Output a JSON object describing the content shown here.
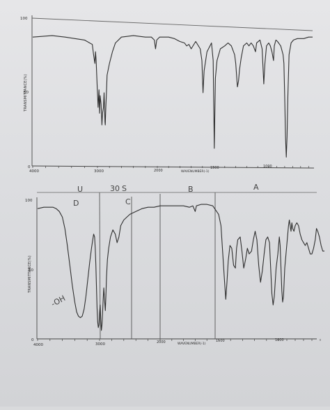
{
  "chart_data": [
    {
      "type": "line",
      "title": "",
      "xlabel": "WAVENUMBER(-1)",
      "ylabel": "TRANSMITTANCE(%)",
      "x_reversed": true,
      "xlim": [
        4000,
        450
      ],
      "ylim": [
        0,
        100
      ],
      "x_ticks": [
        "4000",
        "3000",
        "2000",
        "1500",
        "1000"
      ],
      "y_ticks": [
        "0",
        "50",
        "100"
      ],
      "series": [
        {
          "name": "",
          "points": [
            [
              4000,
              88
            ],
            [
              3700,
              89
            ],
            [
              3500,
              88
            ],
            [
              3200,
              86
            ],
            [
              3120,
              84
            ],
            [
              3080,
              83
            ],
            [
              3060,
              76
            ],
            [
              3040,
              70
            ],
            [
              3030,
              78
            ],
            [
              3020,
              72
            ],
            [
              3010,
              60
            ],
            [
              2990,
              40
            ],
            [
              2975,
              52
            ],
            [
              2965,
              36
            ],
            [
              2955,
              48
            ],
            [
              2940,
              42
            ],
            [
              2925,
              28
            ],
            [
              2915,
              36
            ],
            [
              2900,
              40
            ],
            [
              2890,
              50
            ],
            [
              2875,
              30
            ],
            [
              2870,
              28
            ],
            [
              2860,
              40
            ],
            [
              2850,
              50
            ],
            [
              2840,
              62
            ],
            [
              2800,
              70
            ],
            [
              2750,
              78
            ],
            [
              2700,
              84
            ],
            [
              2600,
              88
            ],
            [
              2400,
              89
            ],
            [
              2200,
              88
            ],
            [
              2100,
              88
            ],
            [
              2050,
              86
            ],
            [
              2030,
              80
            ],
            [
              2010,
              86
            ],
            [
              1980,
              88
            ],
            [
              1900,
              88
            ],
            [
              1850,
              87
            ],
            [
              1800,
              85
            ],
            [
              1760,
              84
            ],
            [
              1740,
              82
            ],
            [
              1720,
              83
            ],
            [
              1700,
              80
            ],
            [
              1660,
              85
            ],
            [
              1620,
              80
            ],
            [
              1605,
              72
            ],
            [
              1595,
              50
            ],
            [
              1585,
              65
            ],
            [
              1560,
              78
            ],
            [
              1520,
              84
            ],
            [
              1505,
              72
            ],
            [
              1495,
              12
            ],
            [
              1485,
              60
            ],
            [
              1470,
              72
            ],
            [
              1440,
              80
            ],
            [
              1400,
              82
            ],
            [
              1370,
              84
            ],
            [
              1340,
              82
            ],
            [
              1310,
              76
            ],
            [
              1300,
              70
            ],
            [
              1285,
              54
            ],
            [
              1275,
              58
            ],
            [
              1265,
              66
            ],
            [
              1250,
              74
            ],
            [
              1230,
              82
            ],
            [
              1200,
              84
            ],
            [
              1180,
              82
            ],
            [
              1160,
              84
            ],
            [
              1140,
              82
            ],
            [
              1120,
              78
            ],
            [
              1110,
              84
            ],
            [
              1080,
              86
            ],
            [
              1060,
              80
            ],
            [
              1045,
              56
            ],
            [
              1035,
              70
            ],
            [
              1020,
              82
            ],
            [
              1000,
              84
            ],
            [
              980,
              82
            ],
            [
              960,
              78
            ],
            [
              940,
              72
            ],
            [
              930,
              82
            ],
            [
              910,
              86
            ],
            [
              890,
              85
            ],
            [
              850,
              82
            ],
            [
              820,
              76
            ],
            [
              810,
              70
            ],
            [
              800,
              48
            ],
            [
              790,
              20
            ],
            [
              780,
              6
            ],
            [
              770,
              20
            ],
            [
              760,
              48
            ],
            [
              745,
              76
            ],
            [
              720,
              84
            ],
            [
              690,
              86
            ],
            [
              640,
              87
            ],
            [
              560,
              87
            ],
            [
              500,
              88
            ],
            [
              450,
              88
            ]
          ]
        }
      ]
    },
    {
      "type": "line",
      "title": "",
      "xlabel": "WAVENUMBER(-1)",
      "ylabel": "TRANSMITTANCE(%)",
      "x_reversed": true,
      "xlim": [
        4000,
        450
      ],
      "ylim": [
        0,
        100
      ],
      "x_ticks": [
        "4000",
        "3000",
        "2000",
        "1500",
        "1000"
      ],
      "y_ticks": [
        "0",
        "50",
        "100"
      ],
      "series": [
        {
          "name": "",
          "points": [
            [
              4000,
              92
            ],
            [
              3900,
              93
            ],
            [
              3750,
              93
            ],
            [
              3700,
              92
            ],
            [
              3650,
              90
            ],
            [
              3600,
              86
            ],
            [
              3560,
              78
            ],
            [
              3520,
              66
            ],
            [
              3480,
              52
            ],
            [
              3440,
              38
            ],
            [
              3400,
              26
            ],
            [
              3370,
              19
            ],
            [
              3340,
              16
            ],
            [
              3310,
              15
            ],
            [
              3280,
              16
            ],
            [
              3250,
              21
            ],
            [
              3220,
              30
            ],
            [
              3190,
              42
            ],
            [
              3160,
              54
            ],
            [
              3130,
              64
            ],
            [
              3110,
              70
            ],
            [
              3095,
              74
            ],
            [
              3080,
              72
            ],
            [
              3070,
              64
            ],
            [
              3060,
              52
            ],
            [
              3050,
              36
            ],
            [
              3040,
              22
            ],
            [
              3030,
              12
            ],
            [
              3020,
              8
            ],
            [
              3010,
              10
            ],
            [
              3000,
              18
            ],
            [
              2990,
              24
            ],
            [
              2980,
              14
            ],
            [
              2970,
              6
            ],
            [
              2960,
              10
            ],
            [
              2950,
              18
            ],
            [
              2940,
              28
            ],
            [
              2930,
              36
            ],
            [
              2915,
              26
            ],
            [
              2905,
              20
            ],
            [
              2895,
              30
            ],
            [
              2885,
              44
            ],
            [
              2870,
              56
            ],
            [
              2850,
              64
            ],
            [
              2820,
              72
            ],
            [
              2780,
              77
            ],
            [
              2740,
              74
            ],
            [
              2710,
              68
            ],
            [
              2680,
              72
            ],
            [
              2650,
              80
            ],
            [
              2600,
              84
            ],
            [
              2500,
              88
            ],
            [
              2400,
              90
            ],
            [
              2300,
              92
            ],
            [
              2200,
              93
            ],
            [
              2100,
              93
            ],
            [
              2000,
              94
            ],
            [
              1900,
              94
            ],
            [
              1800,
              94
            ],
            [
              1750,
              93
            ],
            [
              1720,
              94
            ],
            [
              1700,
              90
            ],
            [
              1690,
              94
            ],
            [
              1650,
              95
            ],
            [
              1600,
              95
            ],
            [
              1550,
              94
            ],
            [
              1500,
              88
            ],
            [
              1480,
              80
            ],
            [
              1465,
              60
            ],
            [
              1450,
              40
            ],
            [
              1440,
              28
            ],
            [
              1430,
              40
            ],
            [
              1420,
              55
            ],
            [
              1405,
              66
            ],
            [
              1390,
              64
            ],
            [
              1375,
              52
            ],
            [
              1360,
              50
            ],
            [
              1350,
              64
            ],
            [
              1340,
              70
            ],
            [
              1320,
              72
            ],
            [
              1305,
              62
            ],
            [
              1290,
              50
            ],
            [
              1275,
              56
            ],
            [
              1260,
              64
            ],
            [
              1245,
              60
            ],
            [
              1225,
              62
            ],
            [
              1210,
              70
            ],
            [
              1195,
              76
            ],
            [
              1180,
              70
            ],
            [
              1165,
              52
            ],
            [
              1150,
              40
            ],
            [
              1135,
              48
            ],
            [
              1120,
              60
            ],
            [
              1105,
              70
            ],
            [
              1090,
              72
            ],
            [
              1075,
              68
            ],
            [
              1065,
              50
            ],
            [
              1055,
              32
            ],
            [
              1045,
              24
            ],
            [
              1035,
              30
            ],
            [
              1020,
              50
            ],
            [
              1005,
              60
            ],
            [
              990,
              72
            ],
            [
              980,
              66
            ],
            [
              970,
              50
            ],
            [
              960,
              34
            ],
            [
              950,
              26
            ],
            [
              940,
              30
            ],
            [
              925,
              50
            ],
            [
              910,
              60
            ],
            [
              895,
              70
            ],
            [
              880,
              80
            ],
            [
              870,
              84
            ],
            [
              860,
              80
            ],
            [
              850,
              76
            ],
            [
              840,
              82
            ],
            [
              830,
              78
            ],
            [
              815,
              76
            ],
            [
              800,
              80
            ],
            [
              780,
              82
            ],
            [
              760,
              80
            ],
            [
              740,
              74
            ],
            [
              720,
              70
            ],
            [
              700,
              68
            ],
            [
              680,
              66
            ],
            [
              660,
              68
            ],
            [
              640,
              64
            ],
            [
              620,
              60
            ],
            [
              600,
              60
            ],
            [
              580,
              64
            ],
            [
              560,
              70
            ],
            [
              545,
              78
            ],
            [
              530,
              76
            ],
            [
              510,
              72
            ],
            [
              490,
              66
            ],
            [
              470,
              62
            ],
            [
              450,
              62
            ]
          ]
        }
      ]
    }
  ],
  "annotations": {
    "top_100_label": "100",
    "oh_label": "-OH",
    "letter_u": "U",
    "letter_d": "D",
    "letter_s": "S",
    "letter_c": "C",
    "letter_b": "B",
    "letter_a": "A",
    "mark_scribble": "30"
  }
}
